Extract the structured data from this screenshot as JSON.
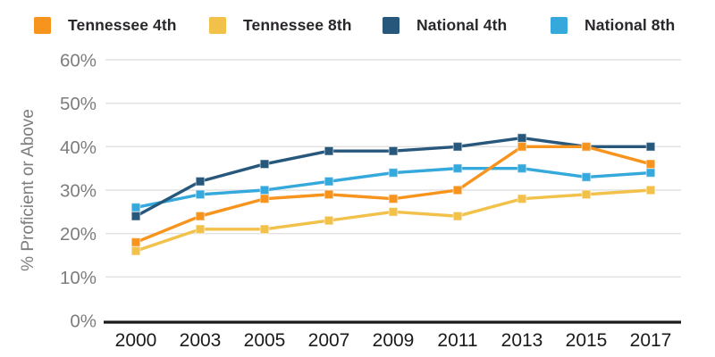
{
  "chart_data": {
    "type": "line",
    "title": "",
    "categories": [
      "2000",
      "2003",
      "2005",
      "2007",
      "2009",
      "2011",
      "2013",
      "2015",
      "2017"
    ],
    "series": [
      {
        "name": "Tennessee 4th",
        "color": "#F7941E",
        "values": [
          18,
          24,
          28,
          29,
          28,
          30,
          40,
          40,
          36
        ]
      },
      {
        "name": "Tennessee 8th",
        "color": "#F2C14A",
        "values": [
          16,
          21,
          21,
          23,
          25,
          24,
          28,
          29,
          30
        ]
      },
      {
        "name": "National 4th",
        "color": "#27587C",
        "values": [
          24,
          32,
          36,
          39,
          39,
          40,
          42,
          40,
          40
        ]
      },
      {
        "name": "National 8th",
        "color": "#35A8DC",
        "values": [
          26,
          29,
          30,
          32,
          34,
          35,
          35,
          33,
          34
        ]
      }
    ],
    "xlabel": "",
    "ylabel": "% Proficient or Above",
    "ylim": [
      0,
      60
    ],
    "ytick_step": 10,
    "ytick_labels": [
      "0%",
      "10%",
      "20%",
      "30%",
      "40%",
      "50%",
      "60%"
    ],
    "grid": "horizontal",
    "legend_position": "top",
    "marker": "square"
  },
  "colors": {
    "background": "#FFFFFF",
    "grid_line": "#E2E2E2",
    "axis_line": "#1A1A1A",
    "tick_label": "#7D7D7D",
    "axis_title": "#7D7D7D",
    "x_label": "#1A1A1A",
    "legend_text": "#29272A"
  }
}
